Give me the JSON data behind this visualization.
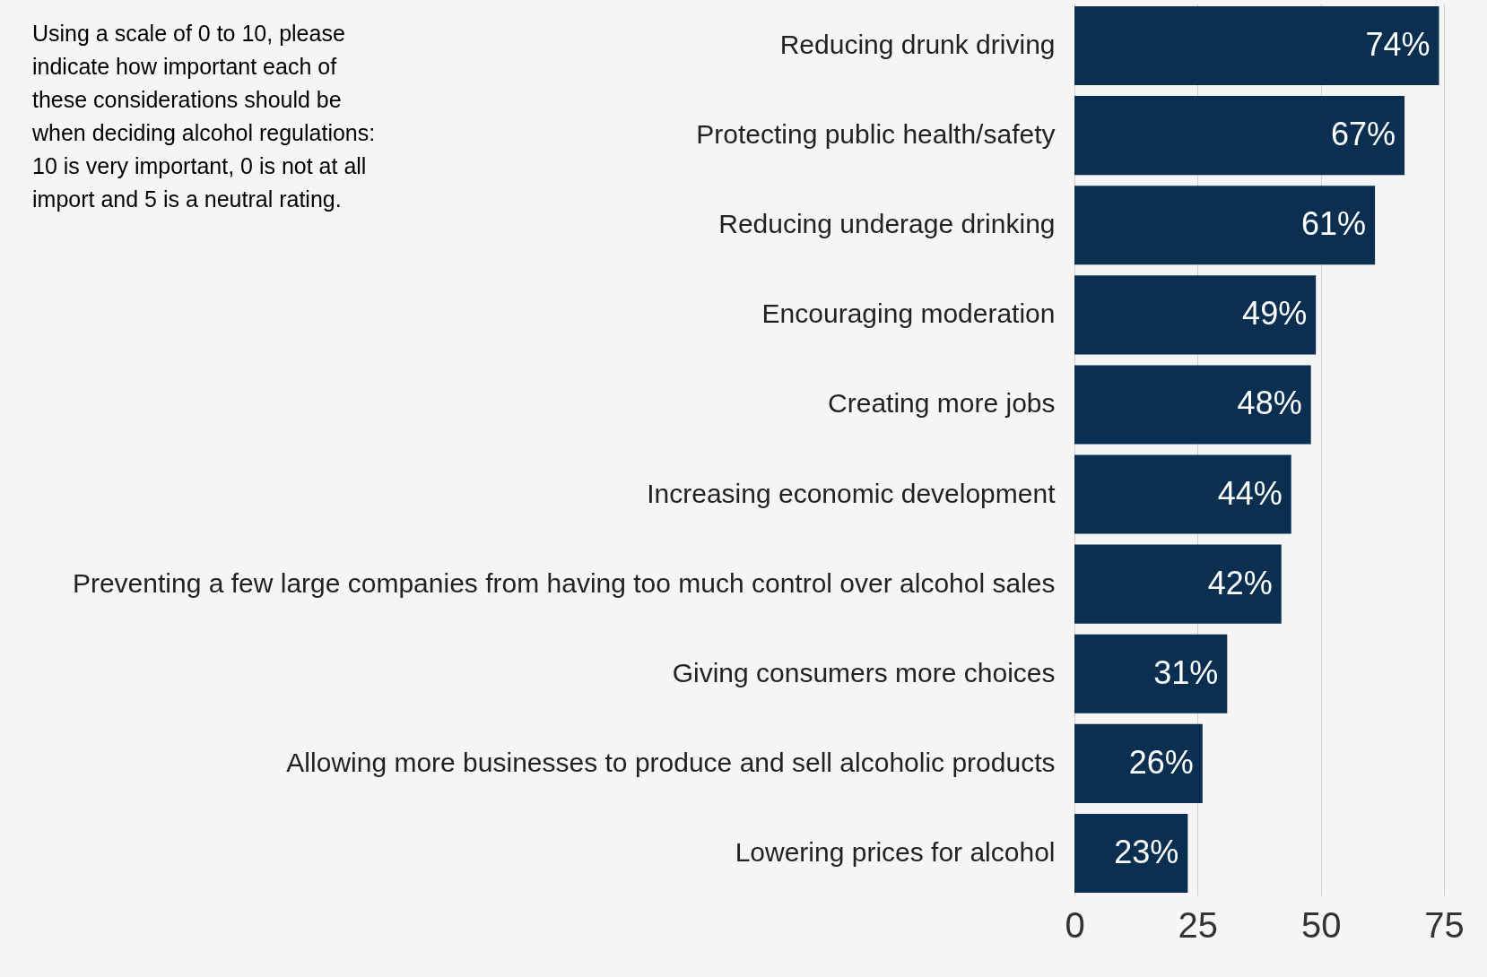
{
  "chart_data": {
    "type": "bar",
    "orientation": "horizontal",
    "categories": [
      "Reducing drunk driving",
      "Protecting public health/safety",
      "Reducing underage drinking",
      "Encouraging moderation",
      "Creating more jobs",
      "Increasing economic development",
      "Preventing a few large companies from having too much control over alcohol sales",
      "Giving consumers more choices",
      "Allowing more businesses to produce and sell alcoholic products",
      "Lowering prices for alcohol"
    ],
    "values": [
      74,
      67,
      61,
      49,
      48,
      44,
      42,
      31,
      26,
      23
    ],
    "value_labels": [
      "74%",
      "67%",
      "61%",
      "49%",
      "48%",
      "44%",
      "42%",
      "31%",
      "26%",
      "23%"
    ],
    "color": "#0b2f51",
    "xlim": [
      0,
      75
    ],
    "xticks": [
      0,
      25,
      50,
      75
    ],
    "grid": "x",
    "annotations": [
      "Using a scale of 0 to 10, please\nindicate how important each of\nthese considerations should be\nwhen deciding alcohol regulations:\n10 is very important, 0 is not at all\nimport and 5 is a neutral rating."
    ]
  }
}
